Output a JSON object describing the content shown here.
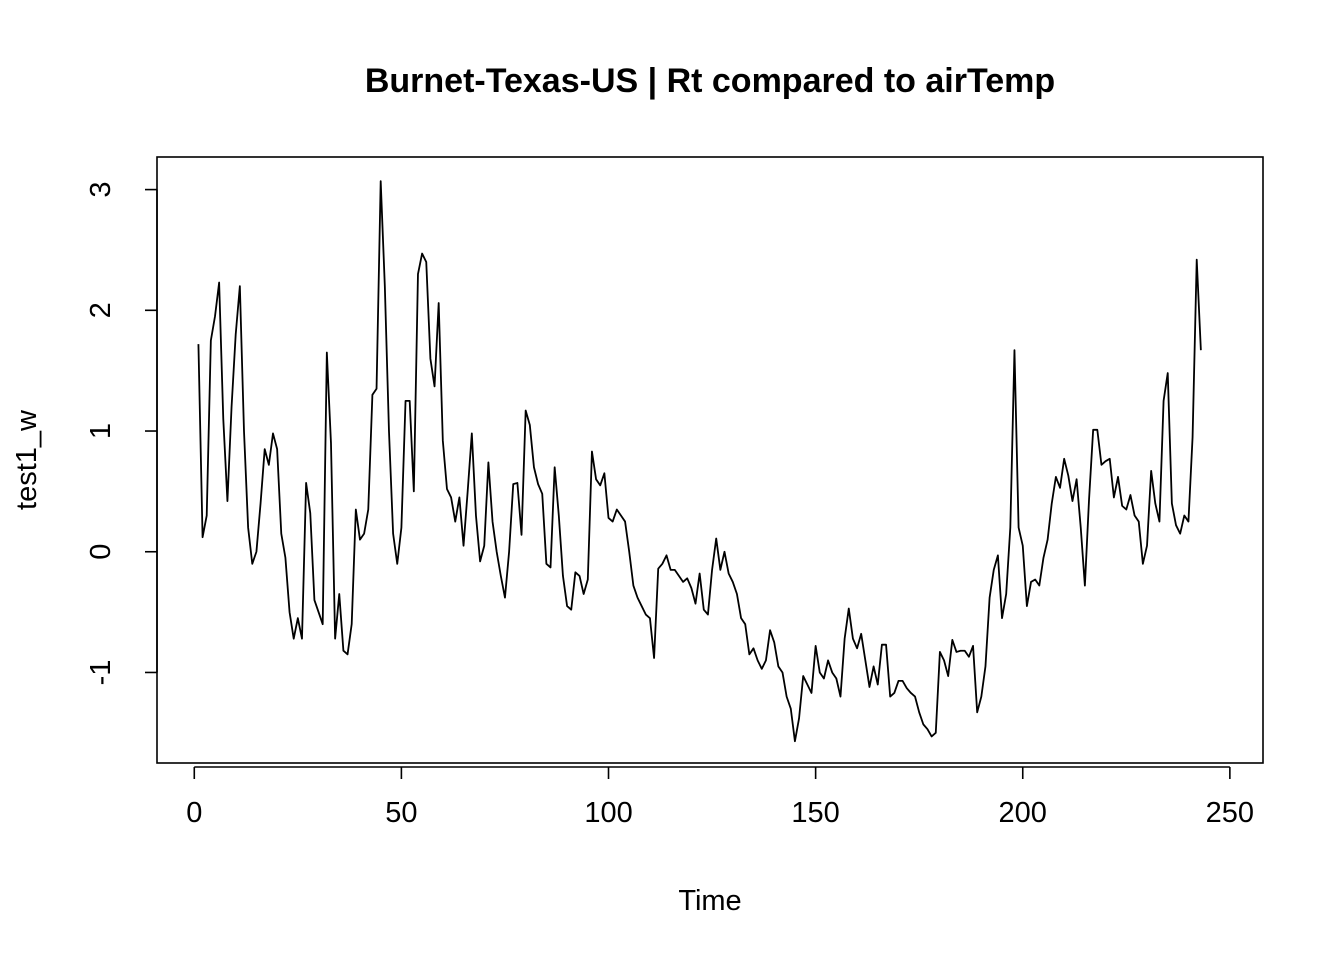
{
  "chart_data": {
    "type": "line",
    "title": "Burnet-Texas-US | Rt compared to airTemp",
    "xlabel": "Time",
    "ylabel": "test1_w",
    "xlim": [
      -9,
      258
    ],
    "ylim": [
      -1.75,
      3.27
    ],
    "x_ticks": [
      0,
      50,
      100,
      150,
      200,
      250
    ],
    "y_ticks": [
      -1,
      0,
      1,
      2,
      3
    ],
    "x_tick_labels": [
      "0",
      "50",
      "100",
      "150",
      "200",
      "250"
    ],
    "y_tick_labels": [
      "-1",
      "0",
      "1",
      "2",
      "3"
    ],
    "grid": false,
    "legend": "none",
    "colors": {
      "line": "#000000",
      "frame": "#000000",
      "background": "#ffffff"
    },
    "series": [
      {
        "x_start": 1,
        "values": [
          1.72,
          0.12,
          0.3,
          1.75,
          1.95,
          2.23,
          1.1,
          0.42,
          1.2,
          1.8,
          2.2,
          1.0,
          0.2,
          -0.1,
          0.0,
          0.4,
          0.85,
          0.72,
          0.98,
          0.85,
          0.15,
          -0.05,
          -0.5,
          -0.72,
          -0.55,
          -0.72,
          0.57,
          0.32,
          -0.4,
          -0.5,
          -0.6,
          1.65,
          0.9,
          -0.72,
          -0.35,
          -0.82,
          -0.85,
          -0.6,
          0.35,
          0.1,
          0.15,
          0.35,
          1.3,
          1.35,
          3.07,
          2.2,
          1.0,
          0.15,
          -0.1,
          0.2,
          1.25,
          1.25,
          0.5,
          2.3,
          2.47,
          2.4,
          1.6,
          1.37,
          2.06,
          0.92,
          0.52,
          0.45,
          0.25,
          0.45,
          0.05,
          0.5,
          0.98,
          0.3,
          -0.08,
          0.05,
          0.74,
          0.25,
          0.0,
          -0.2,
          -0.38,
          0.0,
          0.56,
          0.57,
          0.14,
          1.17,
          1.05,
          0.7,
          0.56,
          0.48,
          -0.1,
          -0.13,
          0.7,
          0.3,
          -0.2,
          -0.45,
          -0.48,
          -0.17,
          -0.2,
          -0.35,
          -0.23,
          0.83,
          0.6,
          0.55,
          0.65,
          0.28,
          0.25,
          0.35,
          0.3,
          0.25,
          0.0,
          -0.28,
          -0.38,
          -0.45,
          -0.52,
          -0.55,
          -0.88,
          -0.14,
          -0.1,
          -0.03,
          -0.15,
          -0.15,
          -0.2,
          -0.25,
          -0.22,
          -0.3,
          -0.43,
          -0.18,
          -0.48,
          -0.52,
          -0.15,
          0.11,
          -0.15,
          0.0,
          -0.18,
          -0.25,
          -0.35,
          -0.55,
          -0.6,
          -0.85,
          -0.8,
          -0.9,
          -0.97,
          -0.9,
          -0.65,
          -0.75,
          -0.95,
          -1.0,
          -1.2,
          -1.3,
          -1.57,
          -1.38,
          -1.03,
          -1.1,
          -1.17,
          -0.78,
          -1.0,
          -1.05,
          -0.9,
          -1.0,
          -1.05,
          -1.2,
          -0.72,
          -0.47,
          -0.72,
          -0.8,
          -0.68,
          -0.9,
          -1.12,
          -0.95,
          -1.1,
          -0.77,
          -0.77,
          -1.2,
          -1.17,
          -1.07,
          -1.07,
          -1.13,
          -1.17,
          -1.2,
          -1.33,
          -1.43,
          -1.47,
          -1.53,
          -1.5,
          -0.83,
          -0.9,
          -1.03,
          -0.73,
          -0.83,
          -0.82,
          -0.82,
          -0.87,
          -0.78,
          -1.33,
          -1.2,
          -0.95,
          -0.38,
          -0.15,
          -0.03,
          -0.55,
          -0.35,
          0.2,
          1.67,
          0.2,
          0.05,
          -0.45,
          -0.25,
          -0.23,
          -0.28,
          -0.05,
          0.1,
          0.4,
          0.62,
          0.53,
          0.77,
          0.63,
          0.42,
          0.6,
          0.2,
          -0.28,
          0.43,
          1.01,
          1.01,
          0.72,
          0.75,
          0.77,
          0.45,
          0.62,
          0.38,
          0.35,
          0.47,
          0.3,
          0.25,
          -0.1,
          0.05,
          0.67,
          0.4,
          0.25,
          1.25,
          1.48,
          0.4,
          0.22,
          0.15,
          0.3,
          0.25,
          0.95,
          2.42,
          1.67
        ]
      }
    ]
  }
}
